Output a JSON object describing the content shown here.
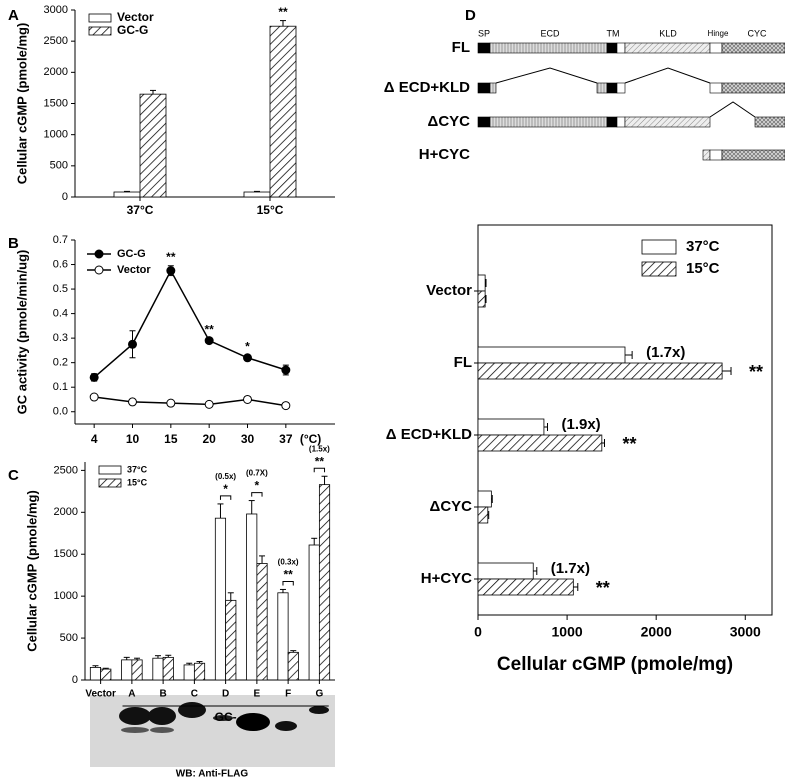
{
  "chart_data": [
    {
      "type": "bar",
      "panel": "A",
      "ylabel": "Cellular cGMP (pmole/mg)",
      "categories": [
        "37°C",
        "15°C"
      ],
      "series": [
        {
          "name": "Vector",
          "color": "#ffffff",
          "hatch": false,
          "values": [
            80,
            80
          ],
          "errors": [
            10,
            10
          ],
          "significance": [
            null,
            null
          ]
        },
        {
          "name": "GC-G",
          "color": "#ffffff",
          "hatch": true,
          "values": [
            1650,
            2740
          ],
          "errors": [
            60,
            90
          ],
          "significance": [
            null,
            "**"
          ]
        }
      ],
      "ylim": [
        0,
        3000
      ],
      "yticks": [
        0,
        500,
        1000,
        1500,
        2000,
        2500,
        3000
      ],
      "legend": "top-left"
    },
    {
      "type": "line",
      "panel": "B",
      "ylabel": "GC activity (pmole/min/ug)",
      "xunit": "(°C)",
      "categories": [
        "4",
        "10",
        "15",
        "20",
        "30",
        "37"
      ],
      "series": [
        {
          "name": "GC-G",
          "color": "#000000",
          "marker_fill": "#000000",
          "values": [
            0.14,
            0.275,
            0.575,
            0.29,
            0.22,
            0.17
          ],
          "errors": [
            0.015,
            0.055,
            0.02,
            0.01,
            0.01,
            0.02
          ],
          "significance": [
            null,
            null,
            "**",
            "**",
            "*",
            null
          ]
        },
        {
          "name": "Vector",
          "color": "#000000",
          "marker_fill": "#ffffff",
          "values": [
            0.06,
            0.04,
            0.035,
            0.03,
            0.05,
            0.025
          ],
          "errors": [
            0.008,
            0.005,
            0.004,
            0.004,
            0.006,
            0.005
          ],
          "significance": [
            null,
            null,
            null,
            null,
            null,
            null
          ]
        }
      ],
      "ylim": [
        -0.05,
        0.7
      ],
      "yticks": [
        {
          "value": 0,
          "label": "0.0"
        },
        0.1,
        0.2,
        0.3,
        0.4,
        0.5,
        0.6,
        0.7
      ],
      "legend": "top-left"
    },
    {
      "type": "bar",
      "panel": "C",
      "ylabel": "Cellular cGMP (pmole/mg)",
      "group_label": "GC-",
      "blot_label": "WB: Anti-FLAG",
      "categories": [
        "Vector",
        "A",
        "B",
        "C",
        "D",
        "E",
        "F",
        "G"
      ],
      "series": [
        {
          "name": "37°C",
          "color": "#ffffff",
          "hatch": false,
          "values": [
            150,
            240,
            260,
            180,
            1930,
            1980,
            1040,
            1610
          ],
          "errors": [
            20,
            30,
            30,
            20,
            170,
            160,
            40,
            80
          ],
          "significance": [
            null,
            null,
            null,
            null,
            null,
            null,
            null,
            null
          ]
        },
        {
          "name": "15°C",
          "color": "#ffffff",
          "hatch": true,
          "values": [
            130,
            240,
            270,
            200,
            950,
            1390,
            330,
            2330
          ],
          "errors": [
            10,
            20,
            25,
            20,
            90,
            90,
            20,
            100
          ],
          "significance": [
            null,
            null,
            null,
            null,
            null,
            null,
            null,
            null
          ]
        }
      ],
      "pair_significance": [
        null,
        null,
        null,
        null,
        "*",
        "*",
        "**",
        "**"
      ],
      "fold": [
        null,
        null,
        null,
        null,
        "(0.5x)",
        "(0.7X)",
        "(0.3x)",
        "(1.5x)"
      ],
      "ylim": [
        0,
        2600
      ],
      "yticks": [
        0,
        500,
        1000,
        1500,
        2000,
        2500
      ],
      "legend": "top-left"
    },
    {
      "type": "hbar",
      "panel": "D",
      "xlabel": "Cellular cGMP (pmole/mg)",
      "categories": [
        "Vector",
        "FL",
        "Δ ECD+KLD",
        "ΔCYC",
        "H+CYC"
      ],
      "series": [
        {
          "name": "37°C",
          "color": "#ffffff",
          "hatch": false,
          "values": [
            80,
            1650,
            740,
            150,
            620
          ],
          "errors": [
            10,
            80,
            40,
            10,
            40
          ]
        },
        {
          "name": "15°C",
          "color": "#ffffff",
          "hatch": true,
          "values": [
            80,
            2740,
            1390,
            110,
            1070
          ],
          "errors": [
            10,
            100,
            30,
            10,
            50
          ]
        }
      ],
      "fold": [
        null,
        "(1.7x)",
        "(1.9x)",
        null,
        "(1.7x)"
      ],
      "significance": [
        null,
        "**",
        "**",
        null,
        "**"
      ],
      "xlim": [
        0,
        3300
      ],
      "xticks": [
        0,
        1000,
        2000,
        3000
      ],
      "legend": "top-right"
    }
  ],
  "diagram": {
    "domains": [
      "SP",
      "ECD",
      "TM",
      "KLD",
      "Hinge",
      "CYC"
    ],
    "constructs": [
      "FL",
      "Δ ECD+KLD",
      "ΔCYC",
      "H+CYC"
    ]
  }
}
